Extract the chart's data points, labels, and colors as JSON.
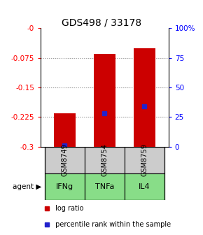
{
  "title": "GDS498 / 33178",
  "samples": [
    "GSM8749",
    "GSM8754",
    "GSM8759"
  ],
  "agents": [
    "IFNg",
    "TNFa",
    "IL4"
  ],
  "log_ratios": [
    -0.215,
    -0.065,
    -0.05
  ],
  "bar_bottom": -0.3,
  "percentile_ranks": [
    1.0,
    28.0,
    34.0
  ],
  "ylim_left": [
    -0.3,
    0.0
  ],
  "yticks_left": [
    0.0,
    -0.075,
    -0.15,
    -0.225,
    -0.3
  ],
  "ytick_labels_left": [
    "-0",
    "-0.075",
    "-0.15",
    "-0.225",
    "-0.3"
  ],
  "yticks_right_pct": [
    100,
    75,
    50,
    25,
    0
  ],
  "grid_lines": [
    -0.075,
    -0.15,
    -0.225
  ],
  "bar_color": "#cc0000",
  "blue_color": "#2222cc",
  "agent_bg_color": "#88dd88",
  "sample_bg_color": "#cccccc",
  "bar_width": 0.55,
  "fig_width": 2.9,
  "fig_height": 3.36
}
